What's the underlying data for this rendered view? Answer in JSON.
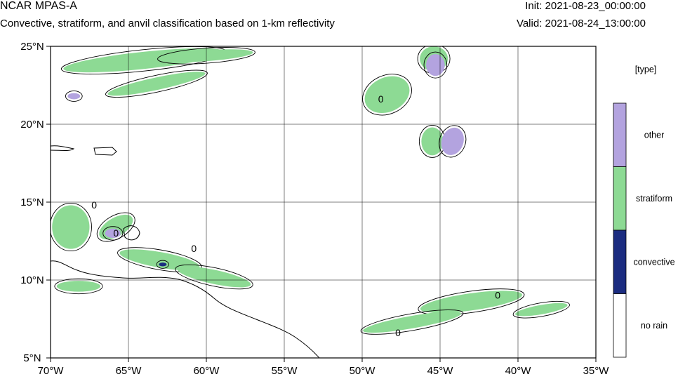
{
  "header": {
    "title": "NCAR MPAS-A",
    "subtitle": "Convective, stratiform, and anvil classification based on 1-km reflectivity",
    "init": "Init: 2021-08-23_00:00:00",
    "valid": "Valid: 2021-08-24_13:00:00"
  },
  "map": {
    "lon_range": [
      -70,
      -35
    ],
    "lat_range": [
      5,
      25
    ],
    "lon_ticks": [
      {
        "value": -70,
        "label": "70°W"
      },
      {
        "value": -65,
        "label": "65°W"
      },
      {
        "value": -60,
        "label": "60°W"
      },
      {
        "value": -55,
        "label": "55°W"
      },
      {
        "value": -50,
        "label": "50°W"
      },
      {
        "value": -45,
        "label": "45°W"
      },
      {
        "value": -40,
        "label": "40°W"
      },
      {
        "value": -35,
        "label": "35°W"
      }
    ],
    "lat_ticks": [
      {
        "value": 25,
        "label": "25°N"
      },
      {
        "value": 20,
        "label": "20°N"
      },
      {
        "value": 15,
        "label": "15°N"
      },
      {
        "value": 10,
        "label": "10°N"
      },
      {
        "value": 5,
        "label": "5°N"
      }
    ],
    "grid": true,
    "contour_labels": [
      {
        "lon": -67.2,
        "lat": 14.6,
        "text": "0"
      },
      {
        "lon": -65.8,
        "lat": 12.8,
        "text": "0"
      },
      {
        "lon": -60.8,
        "lat": 11.8,
        "text": "0"
      },
      {
        "lon": -48.8,
        "lat": 21.4,
        "text": "0"
      },
      {
        "lon": -41.3,
        "lat": 8.8,
        "text": "0"
      },
      {
        "lon": -47.7,
        "lat": 6.4,
        "text": "0"
      }
    ],
    "precip_regions": [
      {
        "type": "stratiform",
        "lon": -64.0,
        "lat": 24.1,
        "rx": 5.2,
        "ry": 0.55,
        "rot": -6
      },
      {
        "type": "stratiform",
        "lon": -63.2,
        "lat": 22.6,
        "rx": 3.2,
        "ry": 0.4,
        "rot": -12
      },
      {
        "type": "stratiform",
        "lon": -60.0,
        "lat": 24.4,
        "rx": 3.0,
        "ry": 0.35,
        "rot": -4
      },
      {
        "type": "stratiform",
        "lon": -68.7,
        "lat": 13.4,
        "rx": 1.2,
        "ry": 1.4,
        "rot": 0
      },
      {
        "type": "stratiform",
        "lon": -65.8,
        "lat": 13.4,
        "rx": 1.2,
        "ry": 0.6,
        "rot": -30
      },
      {
        "type": "stratiform",
        "lon": -63.0,
        "lat": 11.3,
        "rx": 2.6,
        "ry": 0.5,
        "rot": 10
      },
      {
        "type": "stratiform",
        "lon": -59.5,
        "lat": 10.2,
        "rx": 2.4,
        "ry": 0.45,
        "rot": 12
      },
      {
        "type": "stratiform",
        "lon": -68.2,
        "lat": 9.6,
        "rx": 1.4,
        "ry": 0.35,
        "rot": 0
      },
      {
        "type": "stratiform",
        "lon": -48.4,
        "lat": 21.9,
        "rx": 1.5,
        "ry": 1.1,
        "rot": -25
      },
      {
        "type": "stratiform",
        "lon": -45.4,
        "lat": 24.2,
        "rx": 0.9,
        "ry": 0.8,
        "rot": 0
      },
      {
        "type": "stratiform",
        "lon": -45.5,
        "lat": 18.9,
        "rx": 0.7,
        "ry": 0.9,
        "rot": 0
      },
      {
        "type": "stratiform",
        "lon": -43.0,
        "lat": 8.6,
        "rx": 3.3,
        "ry": 0.55,
        "rot": -8
      },
      {
        "type": "stratiform",
        "lon": -46.8,
        "lat": 7.3,
        "rx": 3.2,
        "ry": 0.4,
        "rot": -10
      },
      {
        "type": "stratiform",
        "lon": -38.5,
        "lat": 8.1,
        "rx": 1.7,
        "ry": 0.3,
        "rot": -10
      },
      {
        "type": "other",
        "lon": -44.2,
        "lat": 18.9,
        "rx": 0.7,
        "ry": 0.9,
        "rot": 20
      },
      {
        "type": "other",
        "lon": -45.3,
        "lat": 23.8,
        "rx": 0.6,
        "ry": 0.7,
        "rot": 0
      },
      {
        "type": "other",
        "lon": -66.0,
        "lat": 13.0,
        "rx": 0.5,
        "ry": 0.3,
        "rot": 0
      },
      {
        "type": "other",
        "lon": -68.5,
        "lat": 21.8,
        "rx": 0.4,
        "ry": 0.2,
        "rot": 0
      },
      {
        "type": "convective",
        "lon": -62.8,
        "lat": 11.0,
        "rx": 0.25,
        "ry": 0.12,
        "rot": 0
      }
    ]
  },
  "legend": {
    "title": "[type]",
    "items": [
      {
        "label": "other",
        "color": "#b3a3df"
      },
      {
        "label": "stratiform",
        "color": "#8dda94"
      },
      {
        "label": "convective",
        "color": "#1b2c80"
      },
      {
        "label": "no rain",
        "color": "#ffffff"
      }
    ]
  }
}
